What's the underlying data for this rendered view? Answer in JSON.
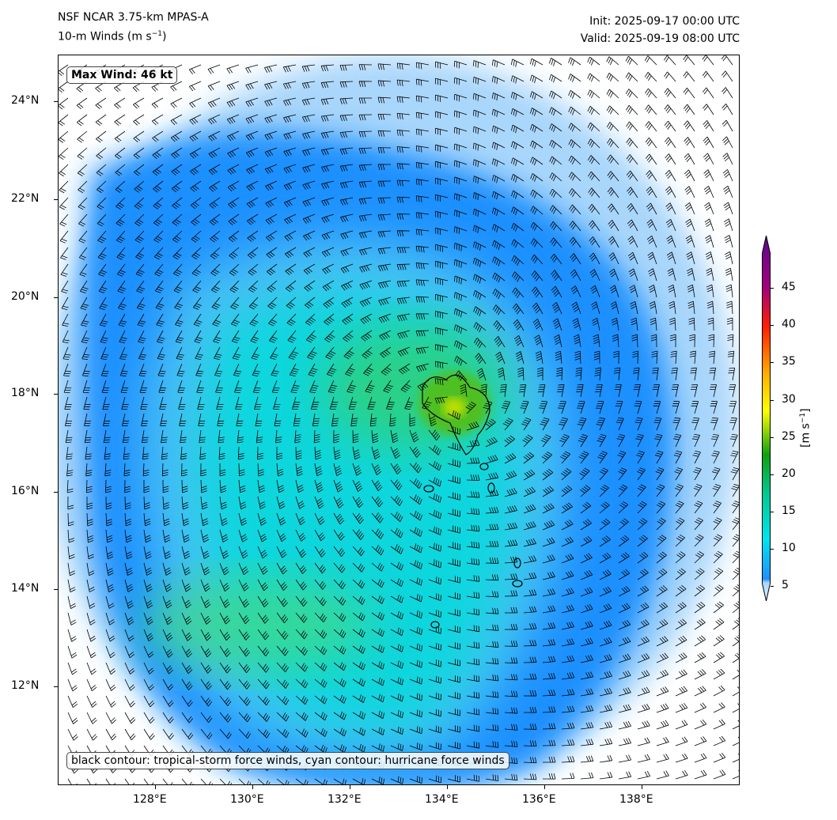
{
  "header": {
    "title_line1": "NSF NCAR 3.75-km MPAS-A",
    "title_line2_prefix": "10-m Winds (m s",
    "title_line2_sup": "−1",
    "title_line2_suffix": ")",
    "init": "Init: 2025-09-17 00:00 UTC",
    "valid": "Valid: 2025-09-19 08:00 UTC"
  },
  "map": {
    "max_wind_label": "Max Wind: 46 kt",
    "legend_note": "black contour: tropical-storm force winds, cyan contour: hurricane force winds",
    "lat_ticks": [
      "24°N",
      "22°N",
      "20°N",
      "18°N",
      "16°N",
      "14°N",
      "12°N"
    ],
    "lon_ticks": [
      "128°E",
      "130°E",
      "132°E",
      "134°E",
      "136°E",
      "138°E"
    ],
    "lat_range": [
      10.0,
      25.0
    ],
    "lon_range": [
      126.0,
      140.0
    ]
  },
  "colorbar": {
    "ticks": [
      "45",
      "40",
      "35",
      "30",
      "25",
      "20",
      "15",
      "10",
      "5"
    ],
    "label_prefix": "[m s",
    "label_sup": "−1",
    "label_suffix": "]",
    "range": [
      5,
      49
    ],
    "colors": [
      "#e6f3ff",
      "#a9d6fb",
      "#1e90ff",
      "#00e5ee",
      "#00c78c",
      "#10a010",
      "#7fd000",
      "#ffff00",
      "#ffb000",
      "#ff4500",
      "#e00000",
      "#a0007f",
      "#5a0a8c"
    ]
  }
}
